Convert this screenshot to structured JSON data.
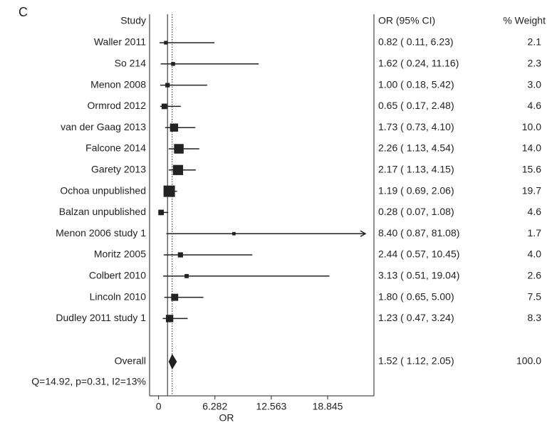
{
  "chart_data": {
    "type": "forest",
    "panel_label": "C",
    "study_header": "Study",
    "ci_header": "OR (95% CI)",
    "weight_header": "% Weight",
    "xlabel": "OR",
    "categories": [
      "Waller 2011",
      "So 214",
      "Menon 2008",
      "Ormrod 2012",
      "van der Gaag 2013",
      "Falcone 2014",
      "Garety 2013",
      "Ochoa unpublished",
      "Balzan unpublished",
      "Menon 2006 study 1",
      "Moritz 2005",
      "Colbert 2010",
      "Lincoln 2010",
      "Dudley 2011 study 1"
    ],
    "values": [
      0.82,
      1.62,
      1.0,
      0.65,
      1.73,
      2.26,
      2.17,
      1.19,
      0.28,
      8.4,
      2.44,
      3.13,
      1.8,
      1.23
    ],
    "lower": [
      0.11,
      0.24,
      0.18,
      0.17,
      0.73,
      1.13,
      1.13,
      0.69,
      0.07,
      0.87,
      0.57,
      0.51,
      0.65,
      0.47
    ],
    "upper": [
      6.23,
      11.16,
      5.42,
      2.48,
      4.1,
      4.54,
      4.15,
      2.06,
      1.08,
      81.08,
      10.45,
      19.04,
      5.0,
      3.24
    ],
    "ci_labels": [
      "0.82 ( 0.11, 6.23)",
      "1.62 ( 0.24, 11.16)",
      "1.00 ( 0.18, 5.42)",
      "0.65 ( 0.17, 2.48)",
      "1.73 ( 0.73, 4.10)",
      "2.26 ( 1.13, 4.54)",
      "2.17 ( 1.13, 4.15)",
      "1.19 ( 0.69, 2.06)",
      "0.28 ( 0.07, 1.08)",
      "8.40 ( 0.87, 81.08)",
      "2.44 ( 0.57, 10.45)",
      "3.13 ( 0.51, 19.04)",
      "1.80 ( 0.65, 5.00)",
      "1.23 ( 0.47, 3.24)"
    ],
    "weights": [
      2.1,
      2.3,
      3.0,
      4.6,
      10.0,
      14.0,
      15.6,
      19.7,
      4.6,
      1.7,
      4.0,
      2.6,
      7.5,
      8.3
    ],
    "weight_labels": [
      "2.1",
      "2.3",
      "3.0",
      "4.6",
      "10.0",
      "14.0",
      "15.6",
      "19.7",
      "4.6",
      "1.7",
      "4.0",
      "2.6",
      "7.5",
      "8.3"
    ],
    "overall": {
      "name": "Overall",
      "value": 1.52,
      "lower": 1.12,
      "upper": 2.05,
      "ci_label": "1.52 ( 1.12, 2.05)",
      "weight": 100.0,
      "weight_label": "100.0"
    },
    "heterogeneity": "Q=14.92, p=0.31, I2=13%",
    "null_line": 1,
    "color": "#222222",
    "xlim": [
      -1,
      24
    ],
    "xticks": [
      0,
      6.282,
      12.563,
      18.845
    ]
  }
}
